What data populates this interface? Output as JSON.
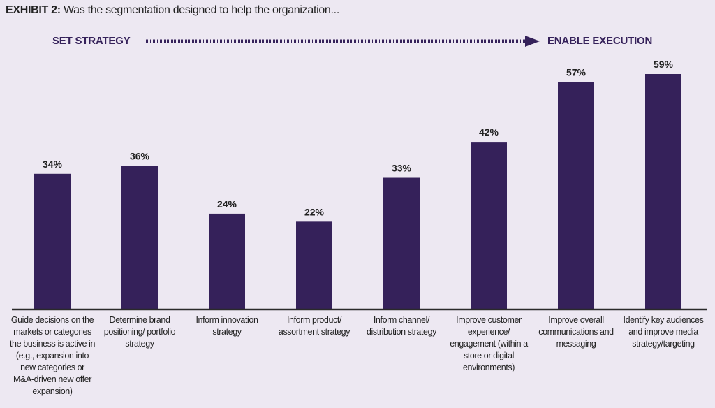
{
  "title": {
    "prefix": "EXHIBIT 2:",
    "text": "Was the segmentation designed to help the organization..."
  },
  "arrow": {
    "left_label": "SET STRATEGY",
    "right_label": "ENABLE EXECUTION"
  },
  "colors": {
    "bar": "#35215a",
    "background": "#ede8f2",
    "axis": "#2a2a2a"
  },
  "chart_data": {
    "type": "bar",
    "categories": [
      "Guide decisions on the markets or categories the business is active in (e.g., expansion into new categories or M&A-driven new offer expansion)",
      "Determine brand positioning/ portfolio strategy",
      "Inform innovation strategy",
      "Inform product/ assortment strategy",
      "Inform channel/ distribution strategy",
      "Improve customer experience/ engagement (within a store or digital environments)",
      "Improve overall communications and messaging",
      "Identify key audiences and improve media strategy/targeting"
    ],
    "values": [
      34,
      36,
      24,
      22,
      33,
      42,
      57,
      59
    ],
    "data_labels": [
      "34%",
      "36%",
      "24%",
      "22%",
      "33%",
      "42%",
      "57%",
      "59%"
    ],
    "unit": "%",
    "ylim": [
      0,
      65
    ],
    "grid": false,
    "legend": "none"
  }
}
